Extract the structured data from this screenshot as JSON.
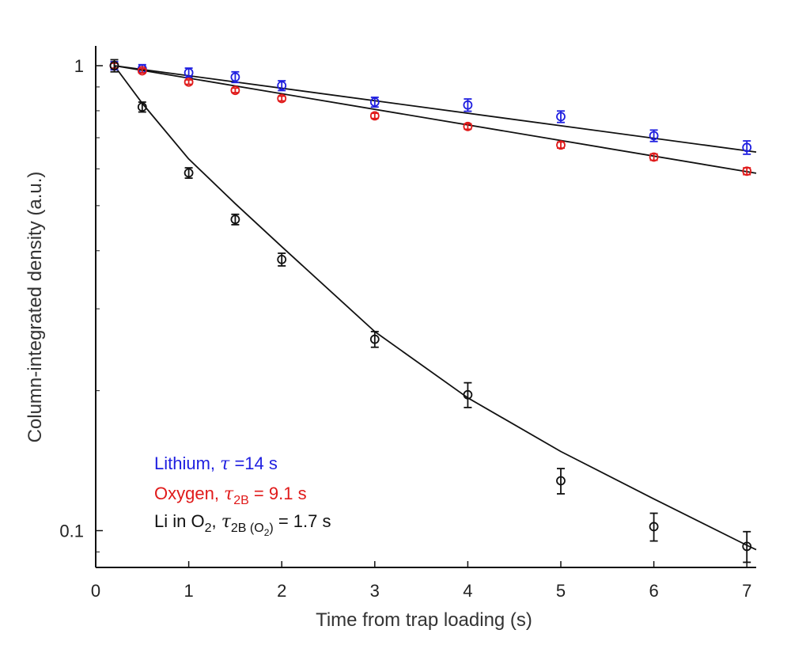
{
  "chart_data": {
    "type": "scatter",
    "xlabel": "Time from trap loading (s)",
    "ylabel": "Column-integrated density (a.u.)",
    "xlim": [
      0,
      7.1
    ],
    "ylim": [
      0.083,
      1.04
    ],
    "yscale": "log",
    "x_ticks": [
      0,
      1,
      2,
      3,
      4,
      5,
      6,
      7
    ],
    "x_tick_labels": [
      "0",
      "1",
      "2",
      "3",
      "4",
      "5",
      "6",
      "7"
    ],
    "y_ticks": [
      0.1,
      1
    ],
    "y_tick_labels": [
      "0.1",
      "1"
    ],
    "grid": false,
    "legend_position": "bottom-left",
    "series": [
      {
        "key": "lithium",
        "color": "#1f1fe0",
        "marker": "open-circle",
        "legend": {
          "prefix": "Lithium, ",
          "tau": "τ",
          "tau_sub": "",
          "suffix": " =14 s"
        },
        "x": [
          0.2,
          0.5,
          1.0,
          1.5,
          2.0,
          3.0,
          4.0,
          5.0,
          6.0,
          7.0
        ],
        "y": [
          1.0,
          0.985,
          0.966,
          0.945,
          0.906,
          0.835,
          0.823,
          0.777,
          0.707,
          0.667
        ],
        "yerr": [
          0.02,
          0.02,
          0.022,
          0.025,
          0.022,
          0.02,
          0.025,
          0.022,
          0.02,
          0.022
        ]
      },
      {
        "key": "oxygen",
        "color": "#e01a1a",
        "marker": "open-circle",
        "legend": {
          "prefix": "Oxygen, ",
          "tau": "τ",
          "tau_sub": "2B",
          "suffix": " = 9.1 s"
        },
        "x": [
          0.2,
          0.5,
          1.0,
          1.5,
          2.0,
          3.0,
          4.0,
          5.0,
          6.0,
          7.0
        ],
        "y": [
          1.0,
          0.975,
          0.922,
          0.885,
          0.85,
          0.78,
          0.74,
          0.675,
          0.636,
          0.593
        ],
        "yerr": [
          0.012,
          0.01,
          0.01,
          0.01,
          0.01,
          0.01,
          0.01,
          0.01,
          0.01,
          0.01
        ]
      },
      {
        "key": "li_in_o2",
        "color": "#111111",
        "marker": "open-circle",
        "legend": {
          "prefix": "Li in O",
          "prefix_sub": "2",
          "mid": ", ",
          "tau": "τ",
          "tau_sub": "2B (O",
          "tau_sub_sub": "2",
          "tau_sub_close": ")",
          "suffix": " = 1.7 s"
        },
        "x": [
          0.2,
          0.5,
          1.0,
          1.5,
          2.0,
          3.0,
          4.0,
          5.0,
          6.0,
          7.0
        ],
        "y": [
          1.0,
          0.815,
          0.588,
          0.467,
          0.383,
          0.258,
          0.196,
          0.128,
          0.102,
          0.0925
        ],
        "yerr": [
          0.03,
          0.02,
          0.015,
          0.012,
          0.012,
          0.01,
          0.012,
          0.008,
          0.007,
          0.007
        ]
      }
    ],
    "fits": [
      {
        "key": "lithium-fit",
        "color": "#111111",
        "x": [
          0.2,
          7.1
        ],
        "y": [
          1.0,
          0.652
        ]
      },
      {
        "key": "oxygen-fit",
        "color": "#111111",
        "x": [
          0.2,
          7.1
        ],
        "y": [
          1.0,
          0.587
        ]
      },
      {
        "key": "li-in-o2-fit",
        "color": "#111111",
        "x": [
          0.2,
          0.5,
          1.0,
          1.5,
          2.0,
          3.0,
          4.0,
          5.0,
          6.0,
          7.0,
          7.1
        ],
        "y": [
          1.0,
          0.83,
          0.63,
          0.505,
          0.408,
          0.268,
          0.193,
          0.148,
          0.117,
          0.093,
          0.091
        ]
      }
    ]
  }
}
